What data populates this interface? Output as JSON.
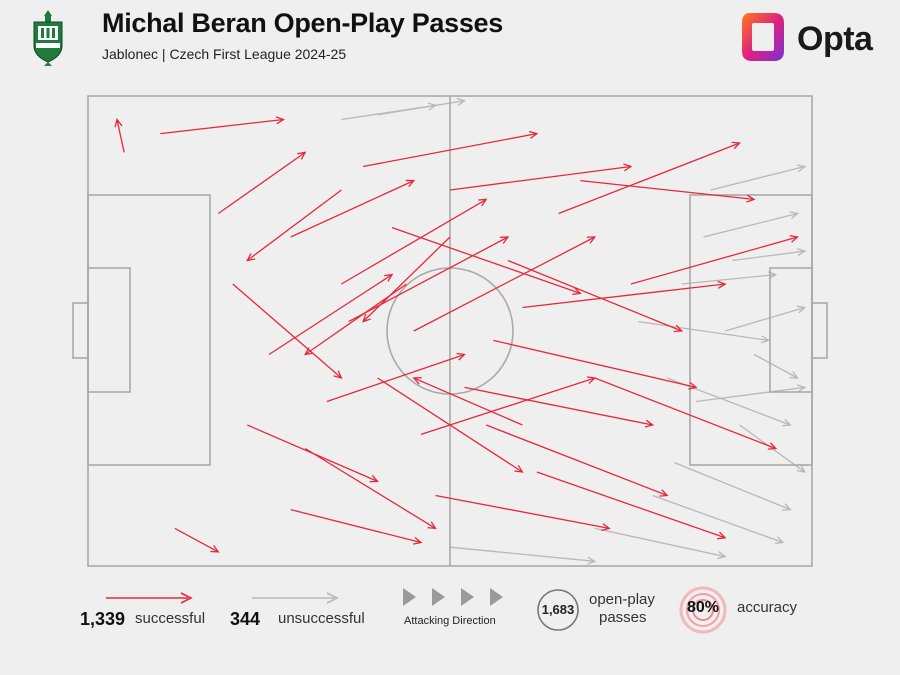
{
  "header": {
    "title": "Michal Beran Open-Play Passes",
    "subtitle": "Jablonec | Czech First League 2024-25",
    "club_crest_icon": "jablonec-crest-icon",
    "brand_name": "Opta",
    "brand_icon": "opta-logo-icon"
  },
  "colors": {
    "successful": "#e8283a",
    "unsuccessful": "#b8b8b8",
    "pitch_lines": "#a9a9a9",
    "background": "#efefef"
  },
  "legend": {
    "successful_count": "1,339",
    "successful_label": "successful",
    "unsuccessful_count": "344",
    "unsuccessful_label": "unsuccessful",
    "direction_label": "Attacking Direction",
    "total_value": "1,683",
    "total_label_line1": "open-play",
    "total_label_line2": "passes",
    "accuracy_value": "80%",
    "accuracy_label": "accuracy"
  },
  "chart_data": {
    "type": "pass-map",
    "pitch_length": 100,
    "pitch_width": 100,
    "attacking_direction": "left-to-right",
    "successful_passes": 1339,
    "unsuccessful_passes": 344,
    "total_passes": 1683,
    "accuracy_pct": 80,
    "sample_successful": [
      [
        10,
        8,
        27,
        5
      ],
      [
        12,
        92,
        18,
        97
      ],
      [
        5,
        12,
        4,
        5
      ],
      [
        28,
        30,
        45,
        18
      ],
      [
        35,
        40,
        55,
        22
      ],
      [
        40,
        60,
        60,
        80
      ],
      [
        45,
        50,
        70,
        30
      ],
      [
        50,
        20,
        75,
        15
      ],
      [
        55,
        70,
        80,
        85
      ],
      [
        60,
        45,
        88,
        40
      ],
      [
        30,
        75,
        48,
        92
      ],
      [
        25,
        55,
        42,
        38
      ],
      [
        65,
        25,
        90,
        10
      ],
      [
        70,
        60,
        95,
        75
      ],
      [
        38,
        15,
        62,
        8
      ],
      [
        48,
        85,
        72,
        92
      ],
      [
        20,
        40,
        35,
        60
      ],
      [
        58,
        35,
        82,
        50
      ],
      [
        33,
        65,
        52,
        55
      ],
      [
        42,
        28,
        68,
        42
      ],
      [
        75,
        40,
        98,
        30
      ],
      [
        52,
        62,
        78,
        70
      ],
      [
        18,
        25,
        30,
        12
      ],
      [
        62,
        80,
        88,
        94
      ],
      [
        36,
        48,
        58,
        30
      ],
      [
        46,
        72,
        70,
        60
      ],
      [
        28,
        88,
        46,
        95
      ],
      [
        68,
        18,
        92,
        22
      ],
      [
        22,
        70,
        40,
        82
      ],
      [
        56,
        52,
        84,
        62
      ],
      [
        44,
        40,
        30,
        55
      ],
      [
        50,
        30,
        38,
        48
      ],
      [
        60,
        70,
        45,
        60
      ],
      [
        35,
        20,
        22,
        35
      ]
    ],
    "sample_unsuccessful": [
      [
        85,
        30,
        98,
        25
      ],
      [
        88,
        50,
        99,
        45
      ],
      [
        80,
        60,
        97,
        70
      ],
      [
        90,
        70,
        99,
        80
      ],
      [
        82,
        40,
        95,
        38
      ],
      [
        78,
        85,
        96,
        95
      ],
      [
        86,
        20,
        99,
        15
      ],
      [
        92,
        55,
        98,
        60
      ],
      [
        35,
        5,
        48,
        2
      ],
      [
        50,
        96,
        70,
        99
      ],
      [
        84,
        65,
        99,
        62
      ],
      [
        76,
        48,
        94,
        52
      ],
      [
        89,
        35,
        99,
        33
      ],
      [
        81,
        78,
        97,
        88
      ],
      [
        70,
        92,
        88,
        98
      ],
      [
        40,
        4,
        52,
        1
      ]
    ]
  }
}
